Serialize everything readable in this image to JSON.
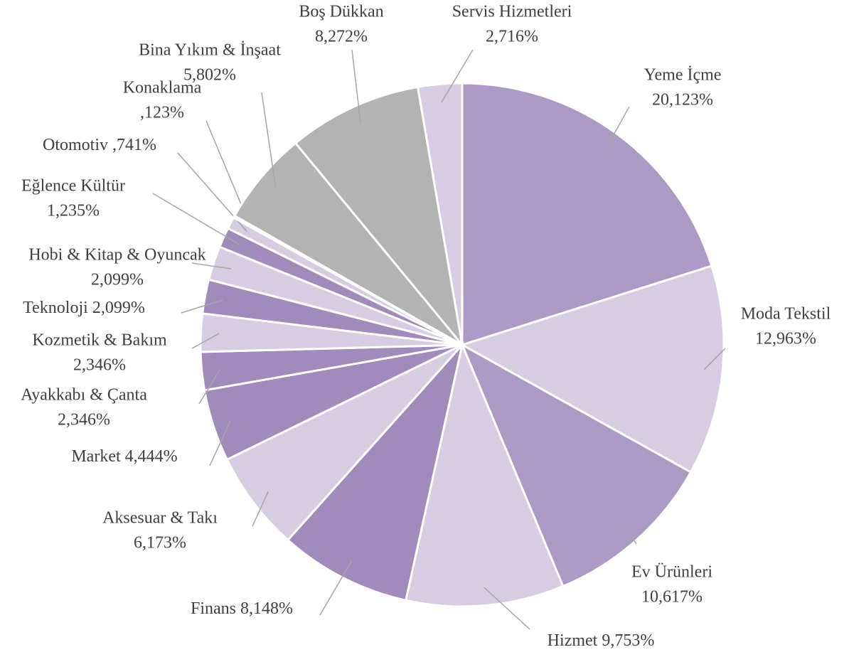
{
  "chart_data": {
    "type": "pie",
    "categories": [
      "Yeme İçme",
      "Moda Tekstil",
      "Ev Ürünleri",
      "Hizmet",
      "Finans",
      "Aksesuar & Takı",
      "Market",
      "Ayakkabı & Çanta",
      "Kozmetik & Bakım",
      "Teknoloji",
      "Hobi & Kitap & Oyuncak",
      "Eğlence Kültür",
      "Otomotiv",
      "Konaklama",
      "Bina Yıkım & İnşaat",
      "Boş Dükkan",
      "Servis Hizmetleri"
    ],
    "values": [
      20.123,
      12.963,
      10.617,
      9.753,
      8.148,
      6.173,
      4.444,
      2.346,
      2.346,
      2.099,
      2.099,
      1.235,
      0.741,
      0.123,
      5.802,
      8.272,
      2.716
    ],
    "value_labels": [
      "20,123%",
      "12,963%",
      "10,617%",
      "9,753%",
      "8,148%",
      "6,173%",
      "4,444%",
      "2,346%",
      "2,346%",
      "2,099%",
      "2,099%",
      "1,235%",
      ",741%",
      ",123%",
      "5,802%",
      "8,272%",
      "2,716%"
    ],
    "colors": [
      "#aa9ac4",
      "#d6cde3",
      "#aa9ac4",
      "#d6cde3",
      "#a08bbb",
      "#d6cde3",
      "#a08bbb",
      "#a08bbb",
      "#d6cde3",
      "#a08bbb",
      "#d6cde3",
      "#a08bbb",
      "#d6cde3",
      "#a08bbb",
      "#b3b3b3",
      "#b3b3b3",
      "#d6cde3"
    ]
  }
}
